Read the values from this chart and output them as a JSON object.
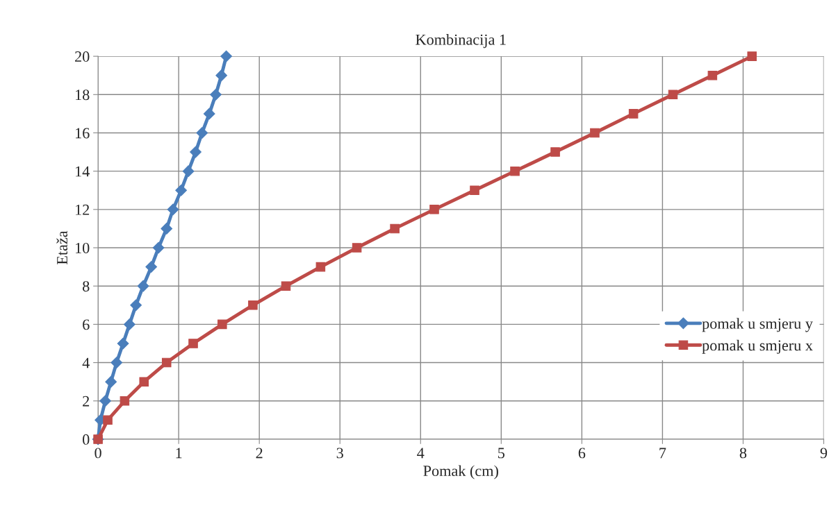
{
  "chart_data": {
    "type": "line",
    "title": "Kombinacija 1",
    "xlabel": "Pomak (cm)",
    "ylabel": "Etaža",
    "xlim": [
      0,
      9
    ],
    "xticks": [
      0,
      1,
      2,
      3,
      4,
      5,
      6,
      7,
      8,
      9
    ],
    "ylim": [
      0,
      20
    ],
    "yticks": [
      0,
      2,
      4,
      6,
      8,
      10,
      12,
      14,
      16,
      18,
      20
    ],
    "grid": true,
    "legend": "right",
    "line_style": "solid",
    "series": [
      {
        "name": "pomak u smjeru y",
        "color": "#4a7ebb",
        "marker": "diamond",
        "x": [
          0,
          0.03,
          0.09,
          0.16,
          0.23,
          0.31,
          0.39,
          0.47,
          0.56,
          0.66,
          0.75,
          0.85,
          0.93,
          1.03,
          1.12,
          1.21,
          1.29,
          1.38,
          1.46,
          1.53,
          1.59
        ],
        "values": [
          0,
          1,
          2,
          3,
          4,
          5,
          6,
          7,
          8,
          9,
          10,
          11,
          12,
          13,
          14,
          15,
          16,
          17,
          18,
          19,
          20
        ]
      },
      {
        "name": "pomak u smjeru x",
        "color": "#be4b48",
        "marker": "square",
        "x": [
          0,
          0.12,
          0.33,
          0.57,
          0.85,
          1.18,
          1.54,
          1.92,
          2.33,
          2.76,
          3.21,
          3.68,
          4.17,
          4.67,
          5.17,
          5.67,
          6.16,
          6.64,
          7.13,
          7.62,
          8.11
        ],
        "values": [
          0,
          1,
          2,
          3,
          4,
          5,
          6,
          7,
          8,
          9,
          10,
          11,
          12,
          13,
          14,
          15,
          16,
          17,
          18,
          19,
          20
        ]
      }
    ]
  }
}
